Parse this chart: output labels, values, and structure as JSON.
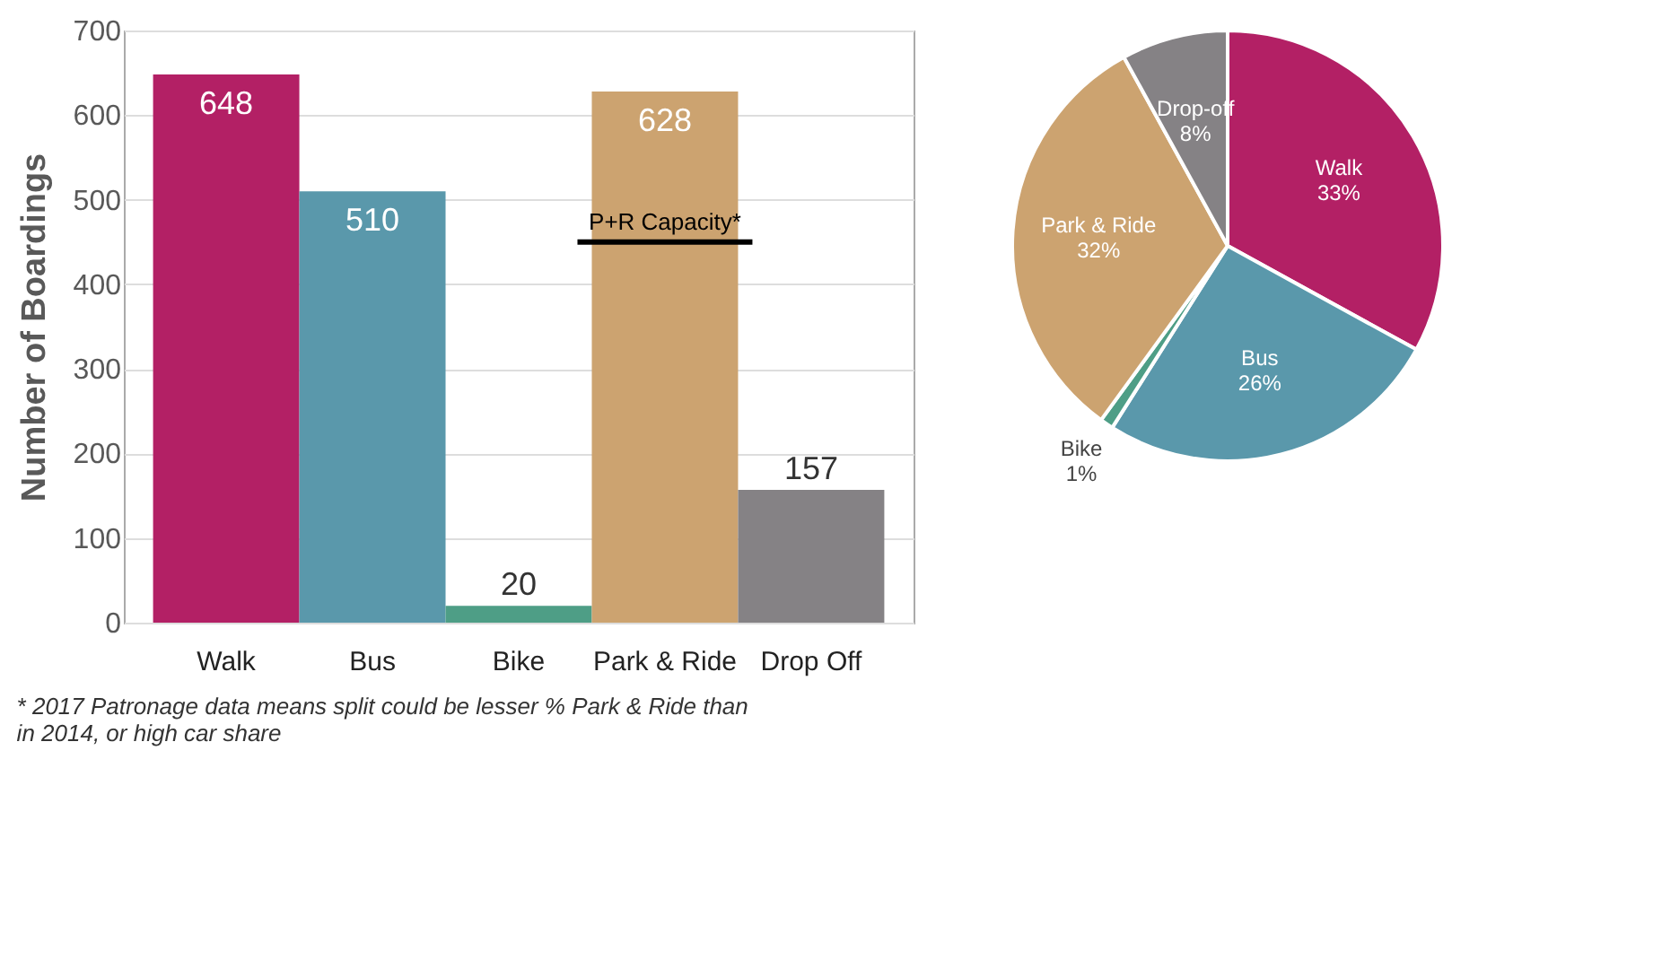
{
  "chart_data": [
    {
      "type": "bar",
      "ylabel": "Number of Boardings",
      "categories": [
        "Walk",
        "Bus",
        "Bike",
        "Park & Ride",
        "Drop Off"
      ],
      "values": [
        648,
        510,
        20,
        628,
        157
      ],
      "colors": [
        "#b32065",
        "#5a98ab",
        "#4e9e86",
        "#cca370",
        "#858285"
      ],
      "ylim": [
        0,
        700
      ],
      "yticks": [
        0,
        100,
        200,
        300,
        400,
        500,
        600,
        700
      ],
      "grid": "y",
      "data_labels": true,
      "ref_lines": [
        {
          "axis": "y",
          "value": 450,
          "label": "P+R Capacity*",
          "color": "#000000"
        }
      ],
      "annotations": [
        "* 2017 Patronage data means split could be lesser % Park & Ride than in 2014, or high car share"
      ]
    },
    {
      "type": "pie",
      "categories": [
        "Walk",
        "Bus",
        "Bike",
        "Park & Ride",
        "Drop-off"
      ],
      "values": [
        33,
        26,
        1,
        32,
        8
      ],
      "colors": [
        "#b32065",
        "#5a98ab",
        "#4e9e86",
        "#cca370",
        "#858285"
      ],
      "value_labels": [
        "33%",
        "26%",
        "1%",
        "32%",
        "8%"
      ]
    }
  ]
}
